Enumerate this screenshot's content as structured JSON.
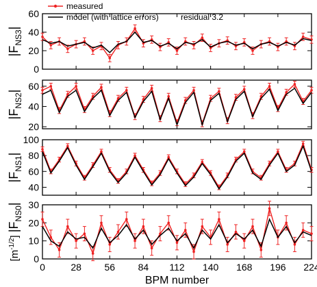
{
  "chart_data": [
    {
      "type": "line",
      "panel": "FNS3",
      "ylabel_main": "|F",
      "ylabel_sub": "NS3",
      "ylabel_end": "|",
      "ylim": [
        0,
        60
      ],
      "yticks": [
        0,
        20,
        40,
        60
      ],
      "legend": {
        "placement": "top-left",
        "measured_label": "measured",
        "model_label": "model (with lattice errors)",
        "note": "residual 3.2"
      },
      "x": [
        0,
        7,
        14,
        21,
        28,
        35,
        42,
        49,
        56,
        63,
        70,
        77,
        84,
        91,
        98,
        105,
        112,
        119,
        126,
        133,
        140,
        147,
        154,
        161,
        168,
        175,
        182,
        189,
        196,
        203,
        210,
        217,
        224
      ],
      "series": [
        {
          "name": "measured",
          "values": [
            35,
            26,
            30,
            22,
            27,
            30,
            20,
            25,
            12,
            26,
            30,
            44,
            28,
            32,
            24,
            29,
            20,
            30,
            26,
            34,
            23,
            28,
            31,
            25,
            29,
            20,
            27,
            30,
            24,
            30,
            25,
            35,
            32
          ],
          "error": 4
        },
        {
          "name": "model (with lattice errors)",
          "values": [
            32,
            28,
            30,
            25,
            27,
            29,
            23,
            26,
            18,
            27,
            30,
            40,
            29,
            31,
            25,
            28,
            22,
            29,
            27,
            32,
            24,
            28,
            30,
            26,
            28,
            22,
            27,
            29,
            25,
            29,
            26,
            33,
            31
          ]
        }
      ]
    },
    {
      "type": "line",
      "panel": "FNS2",
      "ylabel_main": "|F",
      "ylabel_sub": "NS2",
      "ylabel_end": "|",
      "ylim": [
        18,
        66
      ],
      "yticks": [
        20,
        40,
        60
      ],
      "x": [
        0,
        7,
        14,
        21,
        28,
        35,
        42,
        49,
        56,
        63,
        70,
        77,
        84,
        91,
        98,
        105,
        112,
        119,
        126,
        133,
        140,
        147,
        154,
        161,
        168,
        175,
        182,
        189,
        196,
        203,
        210,
        217,
        224
      ],
      "series": [
        {
          "name": "measured",
          "values": [
            56,
            60,
            36,
            52,
            60,
            37,
            50,
            59,
            33,
            48,
            56,
            30,
            47,
            58,
            28,
            50,
            24,
            46,
            56,
            23,
            48,
            55,
            26,
            49,
            57,
            31,
            50,
            60,
            38,
            54,
            62,
            45,
            56
          ],
          "error": 3
        },
        {
          "name": "model (with lattice errors)",
          "values": [
            52,
            56,
            34,
            50,
            56,
            35,
            48,
            56,
            31,
            46,
            54,
            29,
            45,
            55,
            27,
            48,
            22,
            44,
            54,
            22,
            46,
            53,
            25,
            47,
            55,
            30,
            48,
            57,
            36,
            52,
            58,
            43,
            54
          ]
        }
      ]
    },
    {
      "type": "line",
      "panel": "FNS1",
      "ylabel_main": "|F",
      "ylabel_sub": "NS1",
      "ylabel_end": "|",
      "ylim": [
        30,
        100
      ],
      "yticks": [
        40,
        60,
        80,
        100
      ],
      "x": [
        0,
        7,
        14,
        21,
        28,
        35,
        42,
        49,
        56,
        63,
        70,
        77,
        84,
        91,
        98,
        105,
        112,
        119,
        126,
        133,
        140,
        147,
        154,
        161,
        168,
        175,
        182,
        189,
        196,
        203,
        210,
        217,
        224
      ],
      "series": [
        {
          "name": "measured",
          "values": [
            88,
            60,
            75,
            92,
            70,
            52,
            68,
            85,
            62,
            48,
            60,
            80,
            62,
            45,
            58,
            78,
            60,
            44,
            55,
            72,
            58,
            40,
            55,
            75,
            85,
            60,
            52,
            70,
            85,
            62,
            70,
            95,
            62
          ],
          "error": 3
        },
        {
          "name": "model (with lattice errors)",
          "values": [
            85,
            58,
            73,
            90,
            68,
            50,
            66,
            83,
            60,
            46,
            58,
            78,
            60,
            43,
            56,
            76,
            58,
            42,
            53,
            70,
            56,
            38,
            53,
            73,
            83,
            58,
            50,
            68,
            83,
            60,
            68,
            92,
            60
          ]
        }
      ]
    },
    {
      "type": "line",
      "panel": "FNS0",
      "ylabel_unit_pre": "[m",
      "ylabel_unit_sup": "-1/2",
      "ylabel_unit_post": "]",
      "ylabel_main": "|F",
      "ylabel_sub": "NS0",
      "ylabel_end": "|",
      "ylim": [
        0,
        30
      ],
      "yticks": [
        0,
        10,
        20,
        30
      ],
      "x": [
        0,
        7,
        14,
        21,
        28,
        35,
        42,
        49,
        56,
        63,
        70,
        77,
        84,
        91,
        98,
        105,
        112,
        119,
        126,
        133,
        140,
        147,
        154,
        161,
        168,
        175,
        182,
        189,
        196,
        203,
        210,
        217,
        224
      ],
      "series": [
        {
          "name": "measured",
          "values": [
            22,
            12,
            5,
            18,
            10,
            14,
            3,
            20,
            8,
            15,
            22,
            10,
            18,
            6,
            14,
            20,
            9,
            16,
            4,
            18,
            12,
            22,
            8,
            15,
            10,
            18,
            5,
            28,
            12,
            20,
            8,
            16,
            14
          ],
          "error": 4
        },
        {
          "name": "model (with lattice errors)",
          "values": [
            18,
            10,
            7,
            15,
            11,
            12,
            6,
            17,
            9,
            13,
            19,
            11,
            16,
            8,
            13,
            17,
            10,
            14,
            6,
            16,
            11,
            19,
            9,
            14,
            11,
            16,
            7,
            22,
            12,
            18,
            9,
            15,
            13
          ]
        }
      ]
    }
  ],
  "shared_x": {
    "xlabel": "BPM number",
    "xlim": [
      0,
      224
    ],
    "xticks": [
      0,
      28,
      56,
      84,
      112,
      140,
      168,
      196,
      224
    ]
  },
  "colors": {
    "measured": "#ee2222",
    "model": "#000000"
  }
}
